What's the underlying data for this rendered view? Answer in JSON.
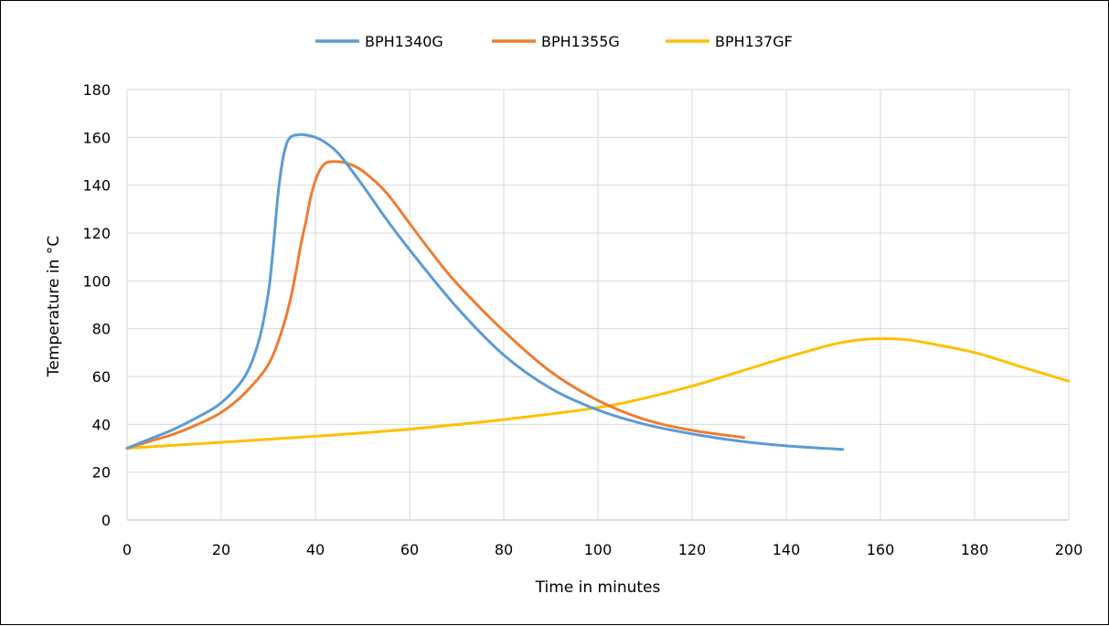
{
  "chart_data": {
    "type": "line",
    "title": "",
    "xlabel": "Time in minutes",
    "ylabel": "Temperature in °C",
    "xlim": [
      0,
      200
    ],
    "ylim": [
      0,
      180
    ],
    "xticks": [
      0,
      20,
      40,
      60,
      80,
      100,
      120,
      140,
      160,
      180,
      200
    ],
    "yticks": [
      0,
      20,
      40,
      60,
      80,
      100,
      120,
      140,
      160,
      180
    ],
    "grid": true,
    "legend_position": "top",
    "series": [
      {
        "name": "BPH1340G",
        "color": "#5B9BD5",
        "x": [
          0,
          5,
          10,
          15,
          20,
          25,
          28,
          30,
          31,
          32,
          33,
          34,
          35,
          36,
          37,
          38,
          40,
          42,
          45,
          50,
          55,
          60,
          70,
          80,
          90,
          100,
          110,
          120,
          130,
          140,
          152
        ],
        "y": [
          30,
          34,
          38,
          43,
          49,
          60,
          75,
          95,
          113,
          135,
          150,
          158,
          160.5,
          161,
          161.2,
          161,
          160,
          158,
          153,
          140,
          126,
          113,
          89,
          69,
          55,
          46,
          40,
          36,
          33,
          31,
          29.5
        ]
      },
      {
        "name": "BPH1355G",
        "color": "#ED7D31",
        "x": [
          0,
          5,
          10,
          15,
          20,
          25,
          30,
          33,
          35,
          37,
          38,
          39,
          40,
          41,
          42,
          43,
          45,
          47,
          50,
          55,
          60,
          65,
          70,
          80,
          90,
          100,
          110,
          120,
          131
        ],
        "y": [
          30,
          33,
          36,
          40,
          45,
          53,
          65,
          80,
          95,
          116,
          125,
          135,
          142,
          146.5,
          149,
          149.8,
          149.8,
          149,
          146,
          137,
          124,
          111,
          99,
          79,
          62,
          50,
          42,
          37.5,
          34.5
        ]
      },
      {
        "name": "BPH137GF",
        "color": "#FFC000",
        "x": [
          0,
          20,
          40,
          60,
          80,
          100,
          110,
          120,
          130,
          140,
          150,
          155,
          160,
          165,
          170,
          180,
          190,
          200
        ],
        "y": [
          30,
          32.5,
          35,
          38,
          42,
          47,
          51,
          56,
          62,
          68,
          73.5,
          75.2,
          75.8,
          75.5,
          74,
          70,
          64,
          58
        ]
      }
    ]
  }
}
